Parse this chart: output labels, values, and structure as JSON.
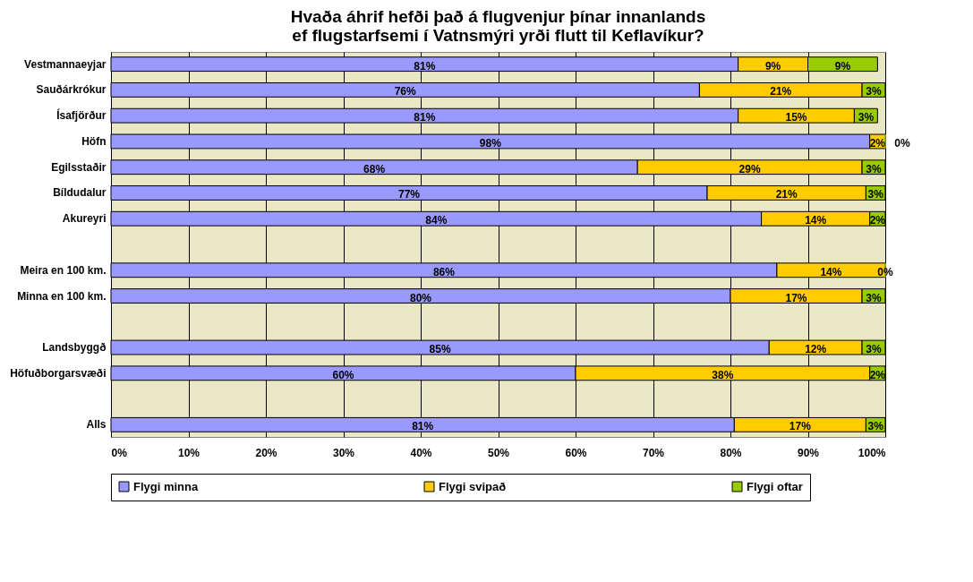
{
  "chart_data": {
    "type": "bar",
    "orientation": "horizontal",
    "stacked": true,
    "title": "Hvaða áhrif hefði það á flugvenjur þínar innanlands ef flugstarfsemi í Vatnsmýri yrði flutt til Keflavíkur?",
    "categories": [
      "Vestmannaeyjar",
      "Sauðárkrókur",
      "Ísafjörður",
      "Höfn",
      "Egilsstaðir",
      "Bíldudalur",
      "Akureyri",
      null,
      "Meira en 100 km.",
      "Minna en 100 km.",
      null,
      "Landsbyggð",
      "Höfuðborgarsvæði",
      null,
      "Alls"
    ],
    "series": [
      {
        "name": "Flygi minna",
        "color": "#9999ff",
        "values": [
          81,
          76,
          81,
          98,
          68,
          77,
          84,
          null,
          86,
          80,
          null,
          85,
          60,
          null,
          80.5
        ],
        "value_labels": [
          "81%",
          "76%",
          "81%",
          "98%",
          "68%",
          "77%",
          "84%",
          null,
          "86%",
          "80%",
          null,
          "85%",
          "60%",
          null,
          "81%"
        ]
      },
      {
        "name": "Flygi svipað",
        "color": "#ffcc00",
        "values": [
          9,
          21,
          15,
          2,
          29,
          20.5,
          14,
          null,
          14,
          17,
          null,
          12,
          38,
          null,
          17
        ],
        "value_labels": [
          "9%",
          "21%",
          "15%",
          "2%",
          "29%",
          "21%",
          "14%",
          null,
          "14%",
          "17%",
          null,
          "12%",
          "38%",
          null,
          "17%"
        ]
      },
      {
        "name": "Flygi oftar",
        "color": "#99cc00",
        "values": [
          9,
          3,
          3,
          0,
          3,
          2.5,
          2,
          null,
          0,
          3,
          null,
          3,
          2,
          null,
          2.5
        ],
        "value_labels": [
          "9%",
          "3%",
          "3%",
          "0%",
          "3%",
          "3%",
          "2%",
          null,
          "0%",
          "3%",
          null,
          "3%",
          "2%",
          null,
          "3%"
        ]
      }
    ],
    "xlim": [
      0,
      100
    ],
    "xticks": [
      {
        "value": 0,
        "label": "0%"
      },
      {
        "value": 10,
        "label": "10%"
      },
      {
        "value": 20,
        "label": "20%"
      },
      {
        "value": 30,
        "label": "30%"
      },
      {
        "value": 40,
        "label": "40%"
      },
      {
        "value": 50,
        "label": "50%"
      },
      {
        "value": 60,
        "label": "60%"
      },
      {
        "value": 70,
        "label": "70%"
      },
      {
        "value": 80,
        "label": "80%"
      },
      {
        "value": 90,
        "label": "90%"
      },
      {
        "value": 100,
        "label": "100%"
      }
    ],
    "grid": "x",
    "legend": "bottom"
  }
}
